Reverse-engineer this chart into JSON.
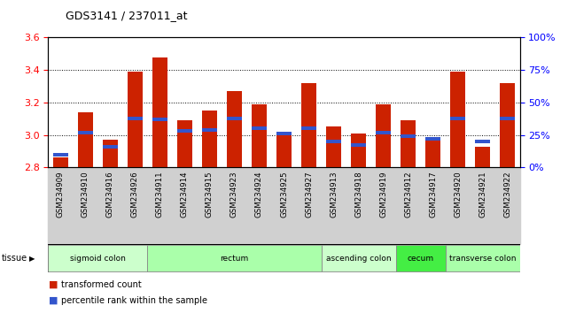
{
  "title": "GDS3141 / 237011_at",
  "samples": [
    "GSM234909",
    "GSM234910",
    "GSM234916",
    "GSM234926",
    "GSM234911",
    "GSM234914",
    "GSM234915",
    "GSM234923",
    "GSM234924",
    "GSM234925",
    "GSM234927",
    "GSM234913",
    "GSM234918",
    "GSM234919",
    "GSM234912",
    "GSM234917",
    "GSM234920",
    "GSM234921",
    "GSM234922"
  ],
  "transformed_count": [
    2.86,
    3.14,
    2.97,
    3.39,
    3.48,
    3.09,
    3.15,
    3.27,
    3.19,
    3.01,
    3.32,
    3.05,
    3.01,
    3.19,
    3.09,
    2.97,
    3.39,
    2.93,
    3.32
  ],
  "percentile_rank": [
    0.1,
    0.27,
    0.16,
    0.38,
    0.37,
    0.28,
    0.29,
    0.38,
    0.3,
    0.26,
    0.3,
    0.2,
    0.17,
    0.27,
    0.24,
    0.22,
    0.38,
    0.2,
    0.38
  ],
  "ylim": [
    2.8,
    3.6
  ],
  "yticks_left": [
    2.8,
    3.0,
    3.2,
    3.4,
    3.6
  ],
  "yticks_right": [
    0,
    25,
    50,
    75,
    100
  ],
  "bar_color": "#cc2200",
  "pct_color": "#3355cc",
  "tissue_groups": [
    {
      "label": "sigmoid colon",
      "start": 0,
      "end": 3,
      "color": "#ccffcc"
    },
    {
      "label": "rectum",
      "start": 4,
      "end": 10,
      "color": "#aaffaa"
    },
    {
      "label": "ascending colon",
      "start": 11,
      "end": 13,
      "color": "#ccffcc"
    },
    {
      "label": "cecum",
      "start": 14,
      "end": 15,
      "color": "#44ee44"
    },
    {
      "label": "transverse colon",
      "start": 16,
      "end": 18,
      "color": "#aaffaa"
    }
  ],
  "legend_red": "transformed count",
  "legend_blue": "percentile rank within the sample",
  "grid_yticks": [
    3.0,
    3.2,
    3.4
  ]
}
